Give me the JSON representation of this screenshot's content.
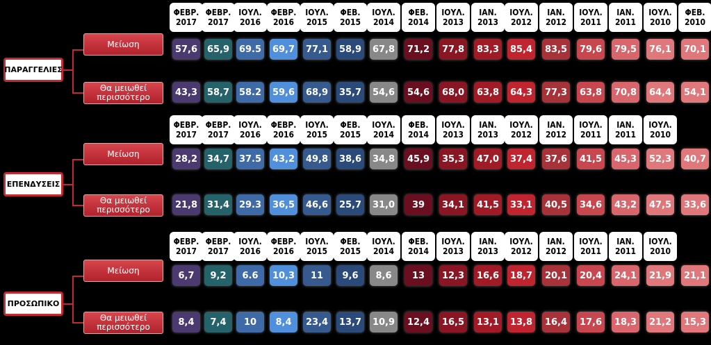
{
  "chart_data": {
    "type": "table",
    "row_labels": [
      "Μείωση",
      "Θα μειωθεί περισσότερο"
    ],
    "colors": {
      "c1": "#4a3a70",
      "c2": "#25626a",
      "c3": "#3e6aa8",
      "c4": "#4f8fdc",
      "c5": "#365a8e",
      "c6": "#2a4a7a",
      "c7": "#888888",
      "c8": "#6a0f1f",
      "c9": "#8a1624",
      "c10": "#a01b25",
      "c11": "#c0242e",
      "c12": "#a8323a",
      "c13": "#c8464e",
      "c14": "#d8666c",
      "c15": "#e0777b"
    },
    "sections": [
      {
        "name": "ΠΑΡΑΓΓΕΛΙΕΣ",
        "headers": [
          "ΦΕΒΡ. 2017",
          "ΦΕΒΡ. 2017",
          "ΙΟΥΛ. 2016",
          "ΦΕΒΡ. 2016",
          "ΙΟΥΛ. 2015",
          "ΦΕΒ. 2015",
          "ΙΟΥΛ. 2014",
          "ΦΕΒ. 2014",
          "ΙΟΥΛ. 2013",
          "ΙΑΝ. 2013",
          "ΙΟΥΛ. 2012",
          "ΙΑΝ. 2012",
          "ΙΟΥΛ. 2011",
          "ΙΑΝ. 2011",
          "ΙΟΥΛ. 2010",
          "ΦΕΒ. 2010"
        ],
        "row1": [
          "57,6",
          "65,9",
          "69.5",
          "69,7",
          "77,1",
          "58,9",
          "67,8",
          "71,2",
          "77,8",
          "83,3",
          "85,4",
          "83,5",
          "79,6",
          "79,5",
          "76,1",
          "70,1"
        ],
        "row2": [
          "43,3",
          "58,7",
          "58.2",
          "59,6",
          "68,9",
          "35,7",
          "54,6",
          "54,6",
          "68,0",
          "63,8",
          "64,3",
          "77,3",
          "63,8",
          "70,8",
          "64,4",
          "54,1"
        ]
      },
      {
        "name": "ΕΠΕΝΔΥΣΕΙΣ",
        "headers": [
          "ΦΕΒΡ. 2017",
          "ΦΕΒΡ. 2017",
          "ΙΟΥΛ. 2016",
          "ΦΕΒΡ. 2016",
          "ΙΟΥΛ. 2015",
          "ΦΕΒ. 2015",
          "ΙΟΥΛ. 2014",
          "ΦΕΒ. 2014",
          "ΙΟΥΛ. 2013",
          "ΙΑΝ. 2013",
          "ΙΟΥΛ. 2012",
          "ΙΑΝ. 2012",
          "ΙΟΥΛ. 2011",
          "ΙΑΝ. 2011",
          "ΙΟΥΛ. 2010",
          ""
        ],
        "row1": [
          "28,2",
          "34,7",
          "37.5",
          "43,2",
          "49,8",
          "38,6",
          "34,8",
          "45,9",
          "35,3",
          "47,0",
          "37,4",
          "37,6",
          "41,5",
          "45,3",
          "52,3",
          "40,7"
        ],
        "row2": [
          "21,8",
          "31,4",
          "29.3",
          "36,5",
          "46,6",
          "25,7",
          "31,0",
          "39",
          "34,1",
          "41,5",
          "33,1",
          "40,5",
          "34,6",
          "43,2",
          "47,5",
          "33,6"
        ]
      },
      {
        "name": "ΠΡΟΣΩΠΙΚΟ",
        "headers": [
          "ΦΕΒΡ. 2017",
          "ΦΕΒΡ. 2017",
          "ΙΟΥΛ. 2016",
          "ΦΕΒΡ. 2016",
          "ΙΟΥΛ. 2015",
          "ΦΕΒ. 2015",
          "ΙΟΥΛ. 2014",
          "ΦΕΒ. 2014",
          "ΙΟΥΛ. 2013",
          "ΙΑΝ. 2013",
          "ΙΟΥΛ. 2012",
          "ΙΑΝ. 2012",
          "ΙΟΥΛ. 2011",
          "ΙΑΝ. 2011",
          "ΙΟΥΛ. 2010",
          ""
        ],
        "row1": [
          "6,7",
          "9,2",
          "6.6",
          "10,3",
          "11",
          "9,6",
          "8,6",
          "13",
          "12,3",
          "16,6",
          "18,7",
          "20,1",
          "20,4",
          "24,1",
          "21,9",
          "21,1"
        ],
        "row2": [
          "8,4",
          "7,4",
          "10",
          "8,4",
          "23,4",
          "13,7",
          "10,9",
          "12,4",
          "16,5",
          "13,1",
          "13,8",
          "16,4",
          "17,6",
          "18,3",
          "21,2",
          "15,3"
        ]
      }
    ]
  }
}
